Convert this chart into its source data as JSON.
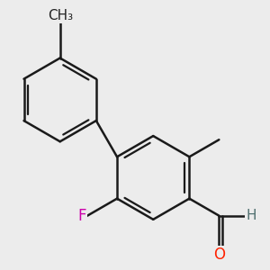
{
  "background_color": "#ececec",
  "bond_color": "#1a1a1a",
  "bond_width": 1.8,
  "atom_colors": {
    "F": "#cc00aa",
    "O": "#ff2200",
    "H": "#507070"
  },
  "font_size_F": 12,
  "font_size_O": 12,
  "font_size_H": 11,
  "font_size_CH3": 11
}
